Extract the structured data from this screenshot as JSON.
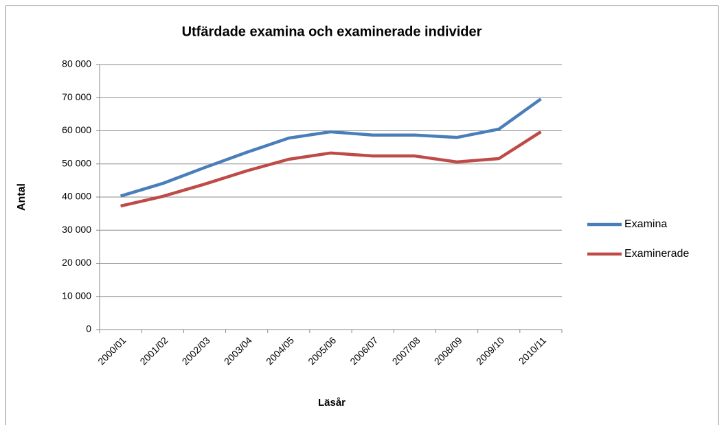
{
  "chart_data": {
    "type": "line",
    "title": "Utfärdade examina och examinerade individer",
    "x_label": "Läsår",
    "y_label": "Antal",
    "categories": [
      "2000/01",
      "2001/02",
      "2002/03",
      "2003/04",
      "2004/05",
      "2005/06",
      "2006/07",
      "2007/08",
      "2008/09",
      "2009/10",
      "2010/11"
    ],
    "series": [
      {
        "name": "Examina",
        "color": "#4a7ebb",
        "values": [
          40300,
          44100,
          48900,
          53500,
          57800,
          59700,
          58700,
          58700,
          58000,
          60500,
          69600
        ]
      },
      {
        "name": "Examinerade",
        "color": "#be4b48",
        "values": [
          37300,
          40200,
          43900,
          47900,
          51400,
          53300,
          52400,
          52400,
          50600,
          51600,
          59700
        ]
      }
    ],
    "ylim": [
      0,
      80000
    ],
    "yticks": [
      0,
      {
        "value": 10000,
        "label": "10 000"
      },
      {
        "value": 20000,
        "label": "20 000"
      },
      {
        "value": 30000,
        "label": "30 000"
      },
      {
        "value": 40000,
        "label": "40 000"
      },
      {
        "value": 50000,
        "label": "50 000"
      },
      {
        "value": 60000,
        "label": "60 000"
      },
      {
        "value": 70000,
        "label": "70 000"
      },
      {
        "value": 80000,
        "label": "80 000"
      }
    ],
    "grid": true,
    "legend": "right"
  }
}
